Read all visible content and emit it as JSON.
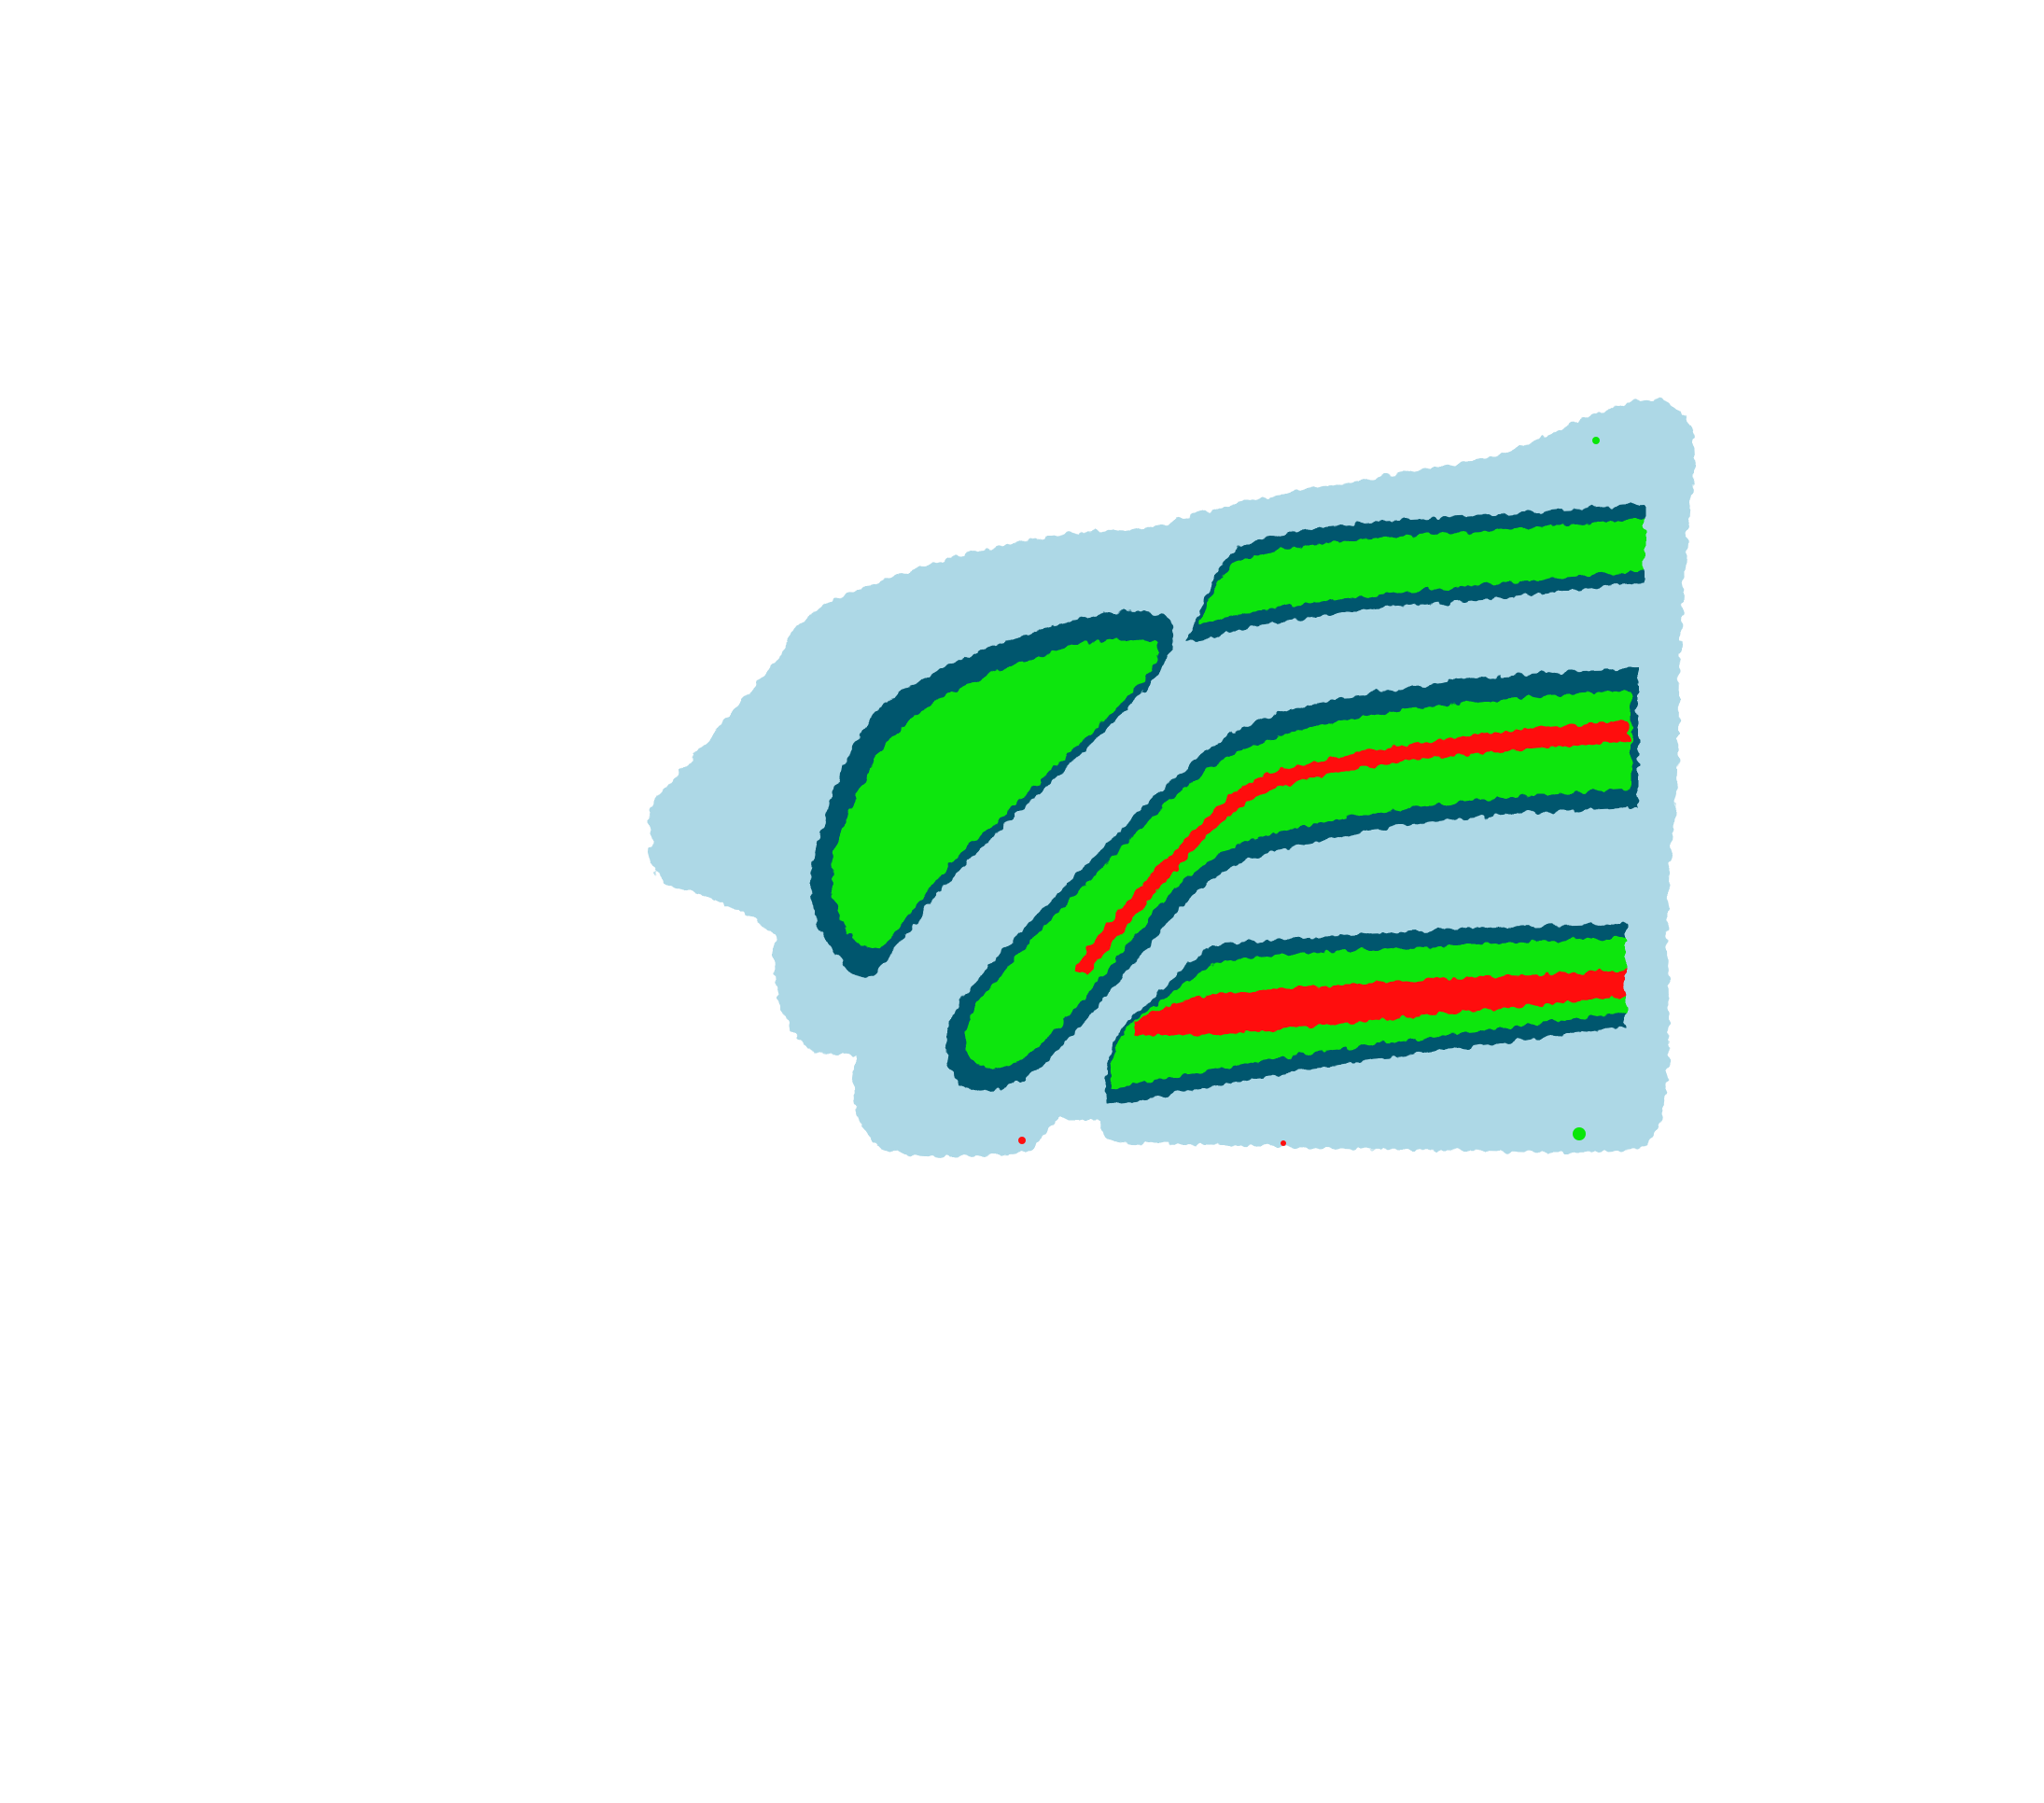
{
  "image": {
    "description_kind": "segmentation-mask",
    "colors": {
      "background": "#ffffff",
      "outer_region": "#add8e6",
      "boundary": "#00566e",
      "interior": "#0ae60a",
      "core": "#ff0f0f"
    }
  }
}
